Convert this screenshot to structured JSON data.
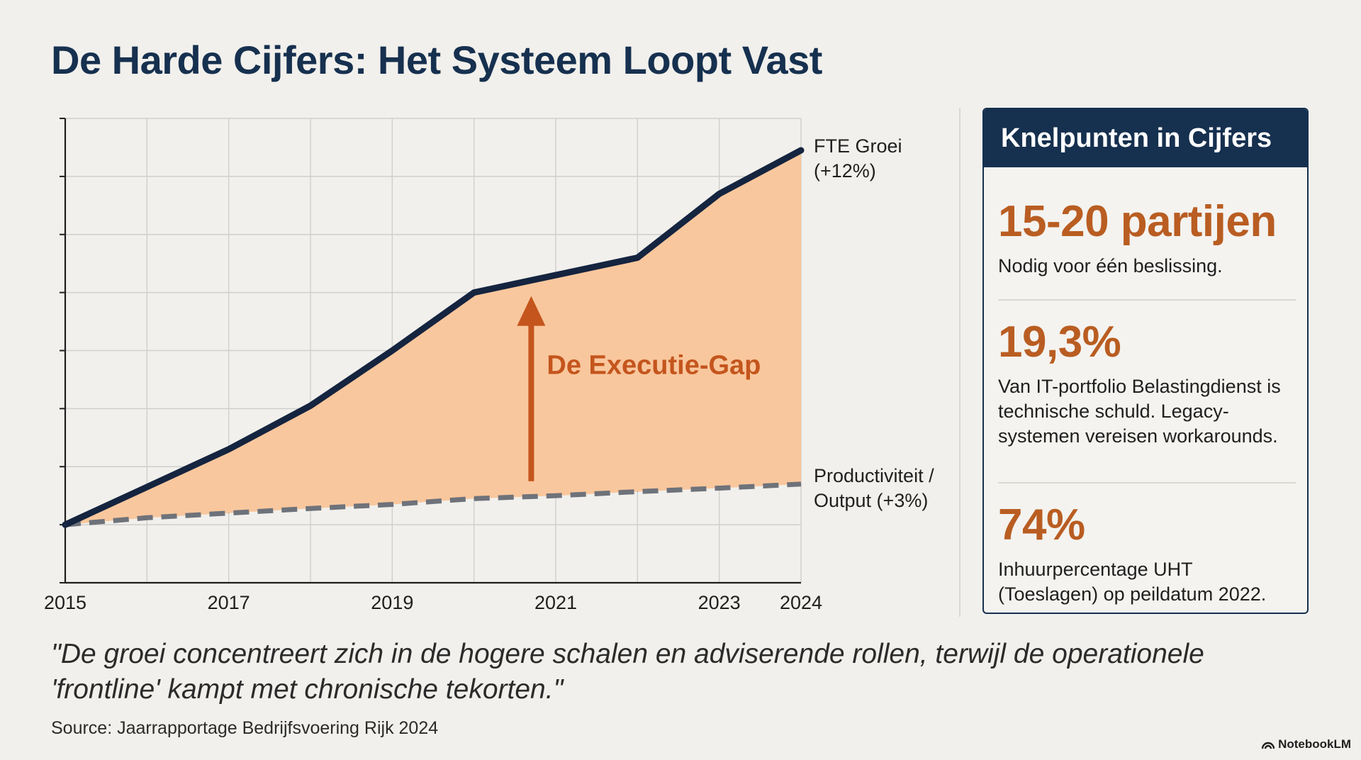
{
  "page": {
    "title": "De Harde Cijfers: Het Systeem Loopt Vast",
    "quote": "\"De groei concentreert zich in de hogere schalen en adviserende rollen, terwijl de operationele 'frontline' kampt met chronische tekorten.\"",
    "source": "Source: Jaarrapportage Bedrijfsvoering Rijk 2024",
    "brand": "NotebookLM"
  },
  "chart_data": {
    "type": "line",
    "x": [
      2015,
      2016,
      2017,
      2018,
      2019,
      2020,
      2021,
      2022,
      2023,
      2024
    ],
    "x_tick_labels": [
      "2015",
      "2017",
      "2019",
      "2021",
      "2023",
      "2024"
    ],
    "x_tick_values": [
      2015,
      2017,
      2019,
      2021,
      2023,
      2024
    ],
    "y_min": 0,
    "y_max": 8,
    "y_ticks": [
      0,
      1,
      2,
      3,
      4,
      5,
      6,
      7,
      8
    ],
    "grid": true,
    "series": [
      {
        "name": "FTE Groei (+12%)",
        "label_lines": [
          "FTE Groei",
          "(+12%)"
        ],
        "style": "solid",
        "color": "#15243f",
        "values": [
          1.0,
          1.65,
          2.3,
          3.05,
          4.0,
          5.0,
          5.3,
          5.6,
          6.7,
          7.45
        ]
      },
      {
        "name": "Productiviteit / Output (+3%)",
        "label_lines": [
          "Productiviteit /",
          "Output (+3%)"
        ],
        "style": "dashed",
        "color": "#6e727a",
        "values": [
          1.0,
          1.12,
          1.2,
          1.28,
          1.35,
          1.45,
          1.5,
          1.57,
          1.63,
          1.7
        ]
      }
    ],
    "fill_between_color": "#f9c79d",
    "annotation": {
      "text": "De Executie-Gap",
      "arrow_x": 2020.7,
      "arrow_from": 1.75,
      "arrow_to": 5.0,
      "color": "#c4551d"
    }
  },
  "panel": {
    "header": "Knelpunten in Cijfers",
    "stats": [
      {
        "value": "15-20 partijen",
        "description": "Nodig voor één beslissing."
      },
      {
        "value": "19,3%",
        "description": "Van IT-portfolio Belastingdienst is technische schuld. Legacy-systemen vereisen workarounds."
      },
      {
        "value": "74%",
        "description": "Inhuurpercentage UHT (Toeslagen) op peildatum 2022."
      }
    ]
  }
}
